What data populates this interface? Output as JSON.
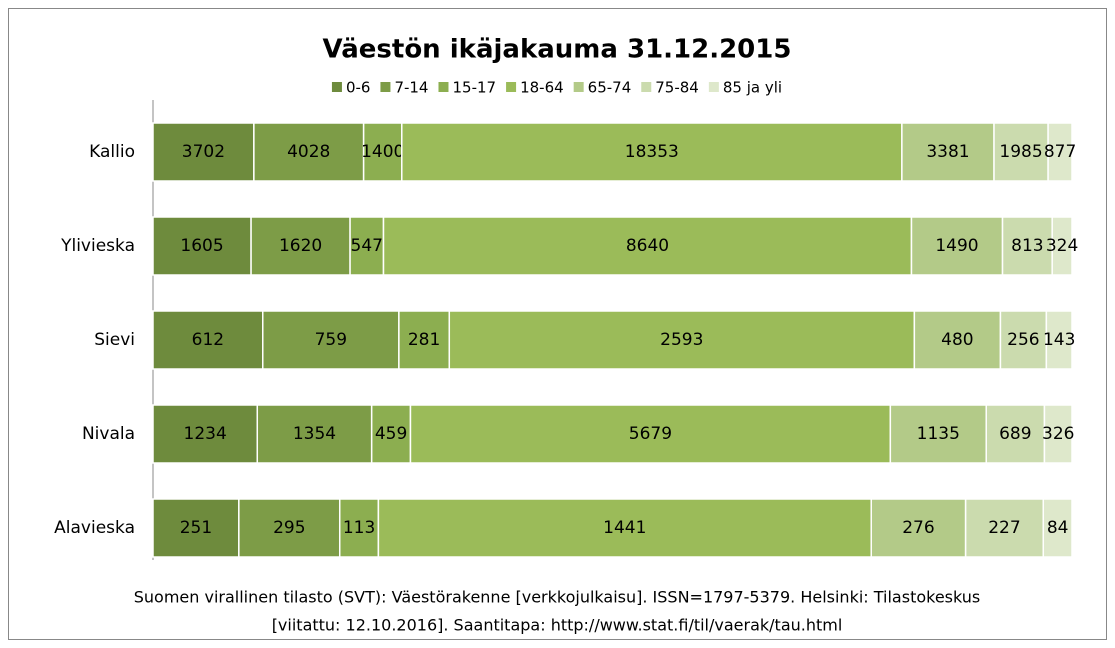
{
  "chart_data": {
    "type": "bar",
    "orientation": "horizontal",
    "stacking": "percent",
    "title": "Väestön ikäjakauma 31.12.2015",
    "categories": [
      "Kallio",
      "Ylivieska",
      "Sievi",
      "Nivala",
      "Alavieska"
    ],
    "series": [
      {
        "name": "0-6",
        "color": "#6e8b3d",
        "values": [
          3702,
          1605,
          612,
          1234,
          251
        ]
      },
      {
        "name": "7-14",
        "color": "#7d9c47",
        "values": [
          4028,
          1620,
          759,
          1354,
          295
        ]
      },
      {
        "name": "15-17",
        "color": "#8cae50",
        "values": [
          1400,
          547,
          281,
          459,
          113
        ]
      },
      {
        "name": "18-64",
        "color": "#9bbb59",
        "values": [
          18353,
          8640,
          2593,
          5679,
          1441
        ]
      },
      {
        "name": "65-74",
        "color": "#b3ca88",
        "values": [
          3381,
          1490,
          480,
          1135,
          276
        ]
      },
      {
        "name": "75-84",
        "color": "#cbdbae",
        "values": [
          1985,
          813,
          256,
          689,
          227
        ]
      },
      {
        "name": "85 ja yli",
        "color": "#dee8cb",
        "values": [
          877,
          324,
          143,
          326,
          84
        ]
      }
    ],
    "legend": "top",
    "source": [
      "Suomen virallinen tilasto (SVT): Väestörakenne [verkkojulkaisu]. ISSN=1797-5379. Helsinki: Tilastokeskus",
      "[viitattu: 12.10.2016]. Saantitapa: http://www.stat.fi/til/vaerak/tau.html"
    ]
  }
}
